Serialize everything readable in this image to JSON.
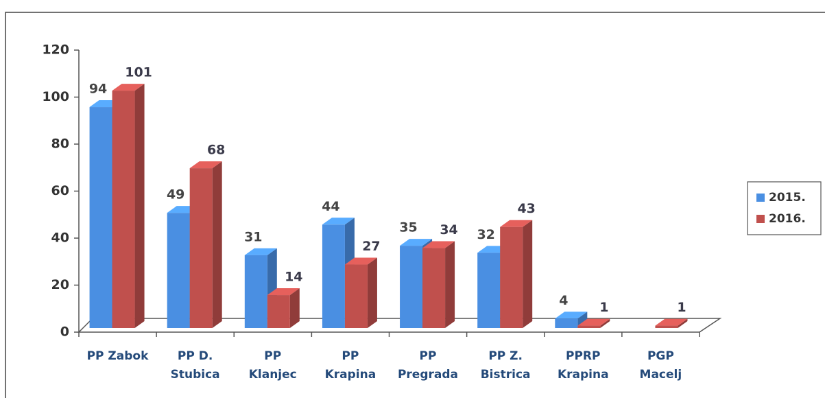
{
  "chart_data": {
    "type": "bar3d",
    "categories": [
      "PP Zabok",
      "PP D.\nStubica",
      "PP\nKlanjec",
      "PP\nKrapina",
      "PP\nPregrada",
      "PP Z.\nBistrica",
      "PPRP\nKrapina",
      "PGP\nMacelj"
    ],
    "series": [
      {
        "name": "2015.",
        "color": "#4a8fe2",
        "values": [
          94,
          49,
          31,
          44,
          35,
          32,
          4,
          null
        ]
      },
      {
        "name": "2016.",
        "color": "#c0504d",
        "values": [
          101,
          68,
          14,
          27,
          34,
          43,
          1,
          1
        ]
      }
    ],
    "ylim": [
      0,
      120
    ],
    "yticks": [
      0,
      20,
      40,
      60,
      80,
      100,
      120
    ],
    "legend": "right"
  }
}
